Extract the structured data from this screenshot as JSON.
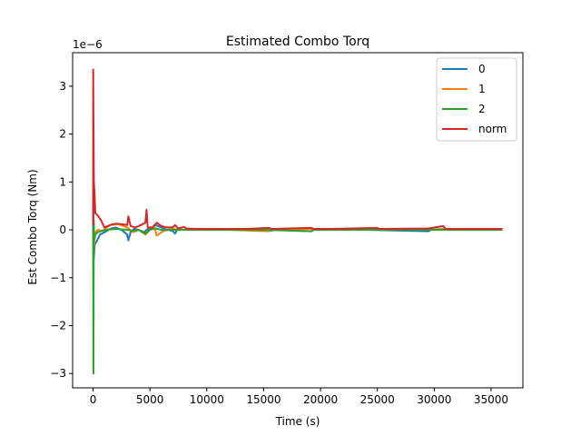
{
  "chart_data": {
    "type": "line",
    "title": "Estimated Combo Torq",
    "xlabel": "Time (s)",
    "ylabel": "Est Combo Torq (Nm)",
    "y_offset_text": "1e−6",
    "xlim": [
      -1800,
      37800
    ],
    "ylim": [
      -3.3,
      3.7
    ],
    "x_ticks": [
      0,
      5000,
      10000,
      15000,
      20000,
      25000,
      30000,
      35000
    ],
    "x_tick_labels": [
      "0",
      "5000",
      "10000",
      "15000",
      "20000",
      "25000",
      "30000",
      "35000"
    ],
    "y_ticks": [
      -3,
      -2,
      -1,
      0,
      1,
      2,
      3
    ],
    "y_tick_labels": [
      "−3",
      "−2",
      "−1",
      "0",
      "1",
      "2",
      "3"
    ],
    "grid": false,
    "legend_position": "top-right",
    "series": [
      {
        "name": "0",
        "color": "#1f77b4",
        "points": [
          [
            0,
            0
          ],
          [
            20,
            0.8
          ],
          [
            60,
            -0.6
          ],
          [
            150,
            -0.3
          ],
          [
            300,
            -0.25
          ],
          [
            600,
            -0.1
          ],
          [
            1000,
            -0.05
          ],
          [
            1500,
            0.02
          ],
          [
            2000,
            0.05
          ],
          [
            2500,
            0.0
          ],
          [
            3000,
            -0.1
          ],
          [
            3100,
            -0.22
          ],
          [
            3300,
            -0.05
          ],
          [
            3600,
            0.02
          ],
          [
            4000,
            0.0
          ],
          [
            4500,
            -0.05
          ],
          [
            4700,
            0.0
          ],
          [
            5200,
            0.05
          ],
          [
            5500,
            0.1
          ],
          [
            6000,
            0.05
          ],
          [
            6500,
            0.0
          ],
          [
            7000,
            -0.02
          ],
          [
            7200,
            -0.08
          ],
          [
            7400,
            0.0
          ],
          [
            8000,
            0.0
          ],
          [
            9000,
            0.0
          ],
          [
            10000,
            0.0
          ],
          [
            11000,
            0.0
          ],
          [
            12000,
            0.0
          ],
          [
            13500,
            0.0
          ],
          [
            15500,
            -0.02
          ],
          [
            16000,
            0.0
          ],
          [
            19200,
            -0.03
          ],
          [
            19400,
            0.0
          ],
          [
            21000,
            0.0
          ],
          [
            24000,
            0.0
          ],
          [
            29500,
            -0.03
          ],
          [
            29700,
            0.0
          ],
          [
            31000,
            0.0
          ],
          [
            35000,
            0.0
          ],
          [
            36000,
            0.0
          ]
        ]
      },
      {
        "name": "1",
        "color": "#ff7f0e",
        "points": [
          [
            0,
            0
          ],
          [
            30,
            -0.5
          ],
          [
            100,
            -0.3
          ],
          [
            200,
            -0.05
          ],
          [
            400,
            0.0
          ],
          [
            800,
            -0.02
          ],
          [
            1500,
            0.1
          ],
          [
            2200,
            0.12
          ],
          [
            3000,
            0.05
          ],
          [
            3500,
            -0.05
          ],
          [
            4000,
            0.0
          ],
          [
            4600,
            -0.1
          ],
          [
            5000,
            0.0
          ],
          [
            5400,
            0.05
          ],
          [
            5600,
            -0.12
          ],
          [
            6000,
            -0.05
          ],
          [
            6500,
            0.0
          ],
          [
            7000,
            0.02
          ],
          [
            8000,
            0.0
          ],
          [
            10000,
            0.0
          ],
          [
            12000,
            0.0
          ],
          [
            15400,
            -0.03
          ],
          [
            15600,
            0.0
          ],
          [
            19200,
            0.02
          ],
          [
            21000,
            0.0
          ],
          [
            25000,
            0.02
          ],
          [
            29500,
            0.0
          ],
          [
            30800,
            0.02
          ],
          [
            33000,
            0.0
          ],
          [
            36000,
            0.0
          ]
        ]
      },
      {
        "name": "2",
        "color": "#2ca02c",
        "points": [
          [
            0,
            0
          ],
          [
            30,
            -3.0
          ],
          [
            60,
            0.2
          ],
          [
            100,
            -0.2
          ],
          [
            200,
            -0.1
          ],
          [
            400,
            -0.05
          ],
          [
            800,
            -0.02
          ],
          [
            1200,
            0.0
          ],
          [
            2000,
            0.02
          ],
          [
            3000,
            0.0
          ],
          [
            3500,
            -0.02
          ],
          [
            4000,
            0.0
          ],
          [
            4600,
            -0.08
          ],
          [
            5000,
            0.0
          ],
          [
            5500,
            0.03
          ],
          [
            6000,
            0.0
          ],
          [
            7000,
            0.0
          ],
          [
            8000,
            0.0
          ],
          [
            10000,
            0.0
          ],
          [
            15000,
            0.0
          ],
          [
            19200,
            -0.03
          ],
          [
            19400,
            0.0
          ],
          [
            25000,
            0.0
          ],
          [
            30000,
            0.0
          ],
          [
            36000,
            0.0
          ]
        ]
      },
      {
        "name": "norm",
        "color": "#d62728",
        "points": [
          [
            0,
            0.1
          ],
          [
            10,
            3.35
          ],
          [
            40,
            2.0
          ],
          [
            70,
            1.0
          ],
          [
            120,
            0.8
          ],
          [
            200,
            0.35
          ],
          [
            400,
            0.3
          ],
          [
            700,
            0.2
          ],
          [
            1000,
            0.05
          ],
          [
            1500,
            0.1
          ],
          [
            2000,
            0.13
          ],
          [
            2500,
            0.12
          ],
          [
            3000,
            0.1
          ],
          [
            3100,
            0.28
          ],
          [
            3300,
            0.08
          ],
          [
            3700,
            0.05
          ],
          [
            4200,
            0.1
          ],
          [
            4600,
            0.15
          ],
          [
            4700,
            0.42
          ],
          [
            4800,
            0.05
          ],
          [
            5200,
            0.05
          ],
          [
            5600,
            0.15
          ],
          [
            6000,
            0.08
          ],
          [
            6500,
            0.05
          ],
          [
            7000,
            0.05
          ],
          [
            7200,
            0.1
          ],
          [
            7500,
            0.03
          ],
          [
            8000,
            0.06
          ],
          [
            8200,
            0.03
          ],
          [
            9000,
            0.02
          ],
          [
            11000,
            0.02
          ],
          [
            13500,
            0.02
          ],
          [
            15500,
            0.04
          ],
          [
            15700,
            0.02
          ],
          [
            19200,
            0.04
          ],
          [
            19400,
            0.02
          ],
          [
            21000,
            0.02
          ],
          [
            25000,
            0.04
          ],
          [
            25200,
            0.02
          ],
          [
            29500,
            0.03
          ],
          [
            30800,
            0.08
          ],
          [
            31000,
            0.02
          ],
          [
            33000,
            0.02
          ],
          [
            36000,
            0.02
          ]
        ]
      }
    ]
  }
}
